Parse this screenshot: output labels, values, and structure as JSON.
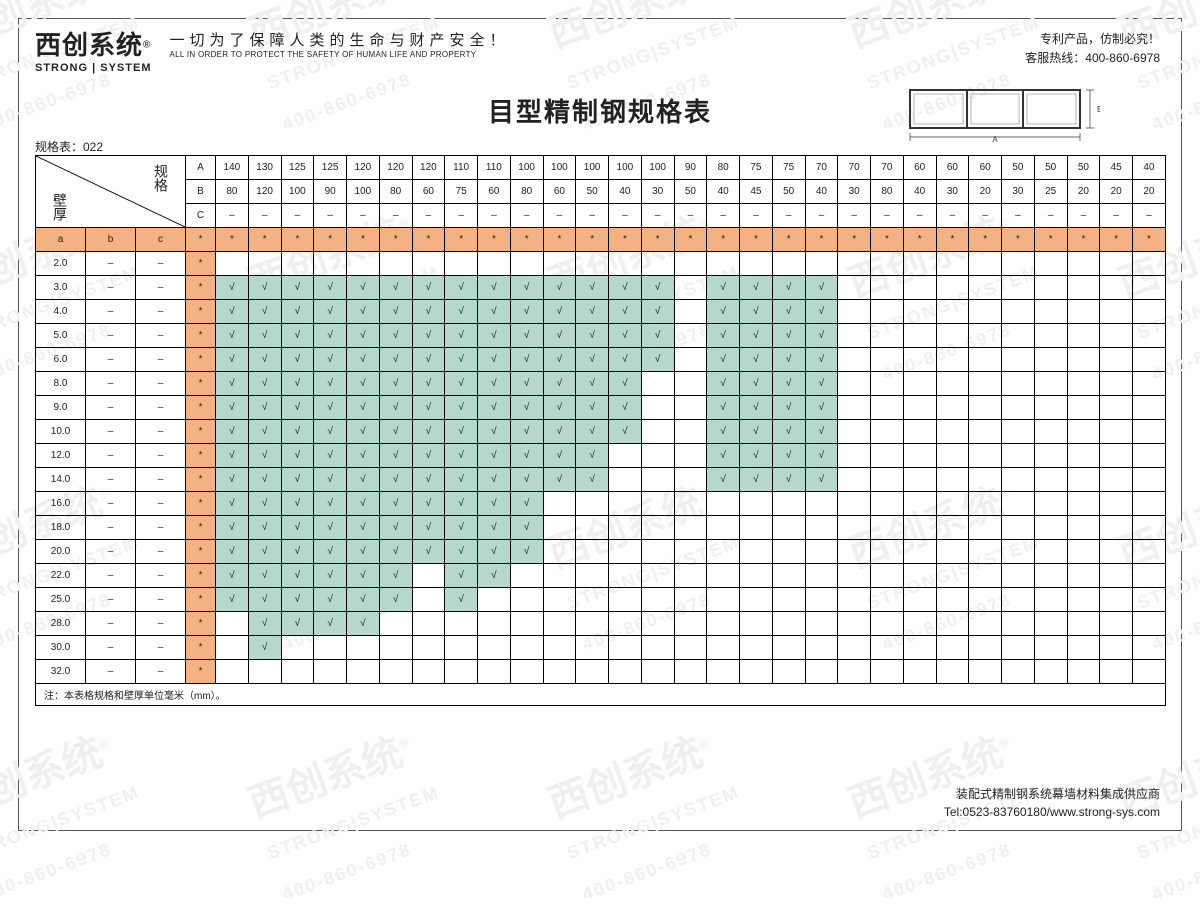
{
  "logo": {
    "cn": "西创系统",
    "reg": "®",
    "en": "STRONG | SYSTEM"
  },
  "slogan": {
    "cn": "一切为了保障人类的生命与财产安全！",
    "en": "ALL IN ORDER TO PROTECT THE SAFETY OF HUMAN LIFE AND PROPERTY"
  },
  "topright": {
    "line1": "专利产品，仿制必究！",
    "line2": "客服热线：400-860-6978"
  },
  "title": "目型精制钢规格表",
  "spec_label": "规格表：022",
  "diag_header": {
    "top_right": "规格",
    "bottom_left": "壁厚"
  },
  "row_labels": [
    "A",
    "B",
    "C"
  ],
  "sub_labels": [
    "a",
    "b",
    "c"
  ],
  "columns_A": [
    "140",
    "130",
    "125",
    "125",
    "120",
    "120",
    "120",
    "110",
    "110",
    "100",
    "100",
    "100",
    "100",
    "100",
    "90",
    "80",
    "75",
    "75",
    "70",
    "70",
    "70",
    "60",
    "60",
    "60",
    "50",
    "50",
    "50",
    "45",
    "40"
  ],
  "columns_B": [
    "80",
    "120",
    "100",
    "90",
    "100",
    "80",
    "60",
    "75",
    "60",
    "80",
    "60",
    "50",
    "40",
    "30",
    "50",
    "40",
    "45",
    "50",
    "40",
    "30",
    "80",
    "40",
    "30",
    "20",
    "30",
    "25",
    "20",
    "20",
    "20"
  ],
  "columns_C_dash": "–",
  "orange_star": "*",
  "thickness_rows": [
    {
      "a": "2.0",
      "checks": []
    },
    {
      "a": "3.0",
      "checks": [
        1,
        2,
        3,
        4,
        5,
        6,
        7,
        8,
        9,
        10,
        11,
        12,
        13,
        14,
        16,
        17,
        18,
        19
      ]
    },
    {
      "a": "4.0",
      "checks": [
        1,
        2,
        3,
        4,
        5,
        6,
        7,
        8,
        9,
        10,
        11,
        12,
        13,
        14,
        16,
        17,
        18,
        19
      ]
    },
    {
      "a": "5.0",
      "checks": [
        1,
        2,
        3,
        4,
        5,
        6,
        7,
        8,
        9,
        10,
        11,
        12,
        13,
        14,
        16,
        17,
        18,
        19
      ]
    },
    {
      "a": "6.0",
      "checks": [
        1,
        2,
        3,
        4,
        5,
        6,
        7,
        8,
        9,
        10,
        11,
        12,
        13,
        14,
        16,
        17,
        18,
        19
      ]
    },
    {
      "a": "8.0",
      "checks": [
        1,
        2,
        3,
        4,
        5,
        6,
        7,
        8,
        9,
        10,
        11,
        12,
        13,
        16,
        17,
        18,
        19
      ]
    },
    {
      "a": "9.0",
      "checks": [
        1,
        2,
        3,
        4,
        5,
        6,
        7,
        8,
        9,
        10,
        11,
        12,
        13,
        16,
        17,
        18,
        19
      ]
    },
    {
      "a": "10.0",
      "checks": [
        1,
        2,
        3,
        4,
        5,
        6,
        7,
        8,
        9,
        10,
        11,
        12,
        13,
        16,
        17,
        18,
        19
      ]
    },
    {
      "a": "12.0",
      "checks": [
        1,
        2,
        3,
        4,
        5,
        6,
        7,
        8,
        9,
        10,
        11,
        12,
        16,
        17,
        18,
        19
      ]
    },
    {
      "a": "14.0",
      "checks": [
        1,
        2,
        3,
        4,
        5,
        6,
        7,
        8,
        9,
        10,
        11,
        12,
        16,
        17,
        18,
        19
      ]
    },
    {
      "a": "16.0",
      "checks": [
        1,
        2,
        3,
        4,
        5,
        6,
        7,
        8,
        9,
        10
      ]
    },
    {
      "a": "18.0",
      "checks": [
        1,
        2,
        3,
        4,
        5,
        6,
        7,
        8,
        9,
        10
      ]
    },
    {
      "a": "20.0",
      "checks": [
        1,
        2,
        3,
        4,
        5,
        6,
        7,
        8,
        9,
        10
      ]
    },
    {
      "a": "22.0",
      "checks": [
        1,
        2,
        3,
        4,
        5,
        6,
        8,
        9
      ]
    },
    {
      "a": "25.0",
      "checks": [
        1,
        2,
        3,
        4,
        5,
        6,
        8
      ]
    },
    {
      "a": "28.0",
      "checks": [
        2,
        3,
        4,
        5
      ]
    },
    {
      "a": "30.0",
      "checks": [
        2
      ]
    },
    {
      "a": "32.0",
      "checks": []
    }
  ],
  "checkmark": "√",
  "dash": "–",
  "footnote": "注：本表格规格和壁厚单位毫米（mm）。",
  "footer": {
    "line1": "装配式精制钢系统幕墙材料集成供应商",
    "line2": "Tel:0523-83760180/www.strong-sys.com"
  },
  "watermark": {
    "cn": "西创系统",
    "en": "STRONG|SYSTEM",
    "phone": "400-860-6978"
  },
  "colors": {
    "orange": "#f4b183",
    "teal": "#b6d7ce",
    "border": "#000000",
    "text": "#222222",
    "watermark": "#f0f0f0"
  }
}
